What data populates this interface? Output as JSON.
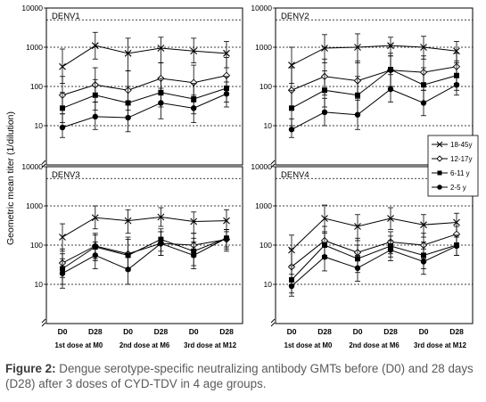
{
  "figure": {
    "ylabel": "Geometric mean titer (1/dilution)",
    "caption_label": "Figure 2:",
    "caption_text": "Dengue serotype-specific neutralizing antibody GMTs before (D0) and 28 days (D28) after 3 doses of CYD-TDV in 4 age groups.",
    "colors": {
      "line": "#000000",
      "box": "#000000",
      "text": "#000000",
      "caption": "#5a5a5a"
    }
  },
  "chart_data": [
    {
      "type": "line",
      "title": "DENV1",
      "scale": "log",
      "ylim": [
        1,
        10000
      ],
      "yticks": [
        10,
        100,
        1000,
        10000
      ],
      "categories": [
        "D0",
        "D28",
        "D0",
        "D28",
        "D0",
        "D28"
      ],
      "groups": [
        "1st dose at M0",
        "2nd dose at M6",
        "3rd dose at M12"
      ],
      "series": [
        {
          "name": "18-45y",
          "marker": "x",
          "values": [
            320,
            1100,
            700,
            950,
            800,
            700
          ],
          "lower": [
            120,
            500,
            250,
            400,
            400,
            300
          ],
          "upper": [
            900,
            2400,
            1700,
            1800,
            1700,
            1400
          ]
        },
        {
          "name": "12-17y",
          "marker": "diamond",
          "values": [
            60,
            110,
            80,
            160,
            125,
            190
          ],
          "lower": [
            20,
            40,
            25,
            60,
            40,
            60
          ],
          "upper": [
            180,
            300,
            250,
            400,
            350,
            550
          ]
        },
        {
          "name": "6-11 y",
          "marker": "square",
          "values": [
            28,
            60,
            38,
            70,
            48,
            90
          ],
          "lower": [
            12,
            25,
            15,
            30,
            20,
            40
          ],
          "upper": [
            70,
            150,
            100,
            160,
            120,
            180
          ]
        },
        {
          "name": "2-5 y",
          "marker": "circle",
          "values": [
            9,
            17,
            16,
            38,
            28,
            65
          ],
          "lower": [
            5,
            8,
            7,
            15,
            12,
            30
          ],
          "upper": [
            20,
            40,
            35,
            90,
            60,
            130
          ]
        }
      ]
    },
    {
      "type": "line",
      "title": "DENV2",
      "scale": "log",
      "ylim": [
        1,
        10000
      ],
      "yticks": [
        10,
        100,
        1000,
        10000
      ],
      "categories": [
        "D0",
        "D28",
        "D0",
        "D28",
        "D0",
        "D28"
      ],
      "groups": [
        "1st dose at M0",
        "2nd dose at M6",
        "3rd dose at M12"
      ],
      "series": [
        {
          "name": "18-45y",
          "marker": "x",
          "values": [
            350,
            950,
            1000,
            1100,
            1000,
            800
          ],
          "lower": [
            120,
            400,
            400,
            600,
            500,
            400
          ],
          "upper": [
            1000,
            2100,
            2200,
            1800,
            1900,
            1400
          ]
        },
        {
          "name": "12-17y",
          "marker": "diamond",
          "values": [
            80,
            180,
            140,
            260,
            230,
            320
          ],
          "lower": [
            25,
            60,
            50,
            100,
            80,
            120
          ],
          "upper": [
            300,
            500,
            450,
            700,
            600,
            700
          ]
        },
        {
          "name": "6-11 y",
          "marker": "square",
          "values": [
            28,
            80,
            60,
            270,
            110,
            190
          ],
          "lower": [
            10,
            30,
            20,
            100,
            40,
            80
          ],
          "upper": [
            80,
            250,
            180,
            600,
            300,
            450
          ]
        },
        {
          "name": "2-5 y",
          "marker": "circle",
          "values": [
            8,
            22,
            19,
            85,
            38,
            110
          ],
          "lower": [
            5,
            10,
            8,
            40,
            18,
            60
          ],
          "upper": [
            15,
            50,
            45,
            200,
            80,
            180
          ]
        }
      ]
    },
    {
      "type": "line",
      "title": "DENV3",
      "scale": "log",
      "ylim": [
        1,
        10000
      ],
      "yticks": [
        10,
        100,
        1000,
        10000
      ],
      "categories": [
        "D0",
        "D28",
        "D0",
        "D28",
        "D0",
        "D28"
      ],
      "groups": [
        "1st dose at M0",
        "2nd dose at M6",
        "3rd dose at M12"
      ],
      "series": [
        {
          "name": "18-45y",
          "marker": "x",
          "values": [
            160,
            500,
            420,
            520,
            400,
            420
          ],
          "lower": [
            70,
            260,
            200,
            300,
            200,
            250
          ],
          "upper": [
            350,
            1000,
            800,
            900,
            700,
            800
          ]
        },
        {
          "name": "12-17y",
          "marker": "diamond",
          "values": [
            35,
            95,
            60,
            110,
            100,
            140
          ],
          "lower": [
            15,
            45,
            25,
            55,
            50,
            70
          ],
          "upper": [
            80,
            200,
            160,
            220,
            200,
            250
          ]
        },
        {
          "name": "6-11 y",
          "marker": "square",
          "values": [
            25,
            90,
            55,
            140,
            70,
            150
          ],
          "lower": [
            10,
            40,
            22,
            70,
            30,
            80
          ],
          "upper": [
            60,
            180,
            140,
            260,
            150,
            250
          ]
        },
        {
          "name": "2-5 y",
          "marker": "circle",
          "values": [
            19,
            55,
            24,
            110,
            55,
            150
          ],
          "lower": [
            8,
            25,
            10,
            55,
            25,
            90
          ],
          "upper": [
            45,
            120,
            60,
            220,
            120,
            220
          ]
        }
      ]
    },
    {
      "type": "line",
      "title": "DENV4",
      "scale": "log",
      "ylim": [
        1,
        10000
      ],
      "yticks": [
        10,
        100,
        1000,
        10000
      ],
      "categories": [
        "D0",
        "D28",
        "D0",
        "D28",
        "D0",
        "D28"
      ],
      "groups": [
        "1st dose at M0",
        "2nd dose at M6",
        "3rd dose at M12"
      ],
      "series": [
        {
          "name": "18-45y",
          "marker": "x",
          "values": [
            75,
            480,
            300,
            480,
            330,
            380
          ],
          "lower": [
            30,
            200,
            130,
            250,
            160,
            180
          ],
          "upper": [
            180,
            1050,
            600,
            900,
            600,
            650
          ]
        },
        {
          "name": "12-17y",
          "marker": "diamond",
          "values": [
            28,
            130,
            65,
            120,
            100,
            190
          ],
          "lower": [
            10,
            55,
            25,
            60,
            45,
            100
          ],
          "upper": [
            80,
            300,
            150,
            220,
            200,
            300
          ]
        },
        {
          "name": "6-11 y",
          "marker": "square",
          "values": [
            13,
            100,
            45,
            95,
            55,
            100
          ],
          "lower": [
            6,
            45,
            20,
            50,
            25,
            55
          ],
          "upper": [
            30,
            220,
            100,
            170,
            120,
            180
          ]
        },
        {
          "name": "2-5 y",
          "marker": "circle",
          "values": [
            9,
            50,
            26,
            75,
            38,
            95
          ],
          "lower": [
            5,
            22,
            12,
            40,
            18,
            55
          ],
          "upper": [
            18,
            110,
            55,
            130,
            80,
            160
          ]
        }
      ]
    }
  ]
}
